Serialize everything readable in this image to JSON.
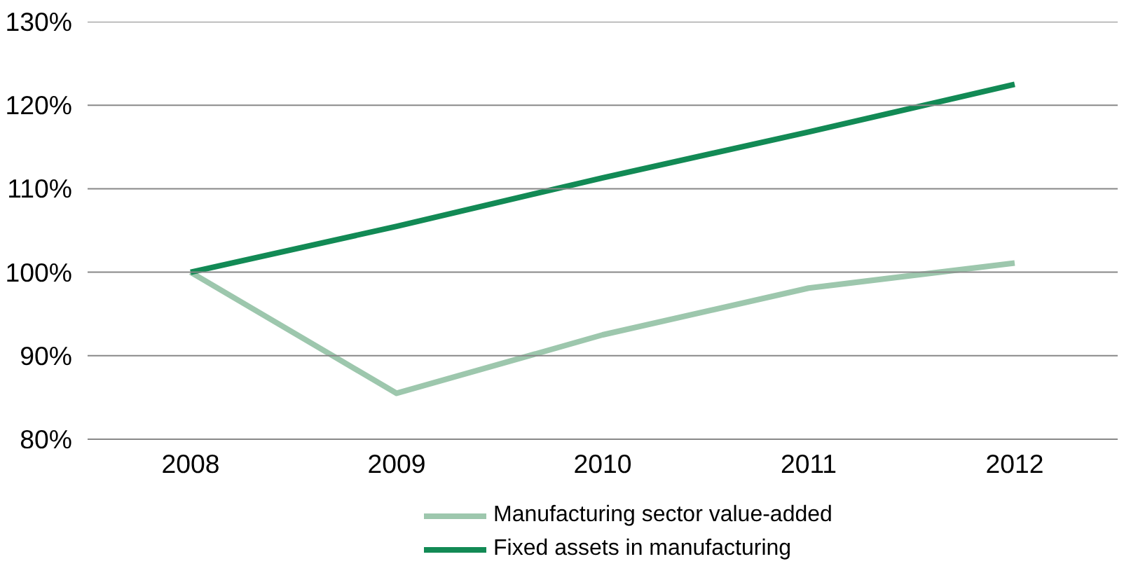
{
  "chart_data": {
    "type": "line",
    "categories": [
      "2008",
      "2009",
      "2010",
      "2011",
      "2012"
    ],
    "series": [
      {
        "name": "Manufacturing sector value-added",
        "color": "#9dc7ad",
        "values": [
          100,
          85.5,
          92.5,
          98.1,
          101.1
        ]
      },
      {
        "name": "Fixed assets in manufacturing",
        "color": "#128a55",
        "values": [
          100,
          105.5,
          111.3,
          116.8,
          122.5
        ]
      }
    ],
    "ylim": [
      80,
      130
    ],
    "yticks": [
      {
        "value": 80,
        "label": "80%"
      },
      {
        "value": 90,
        "label": "90%"
      },
      {
        "value": 100,
        "label": "100%"
      },
      {
        "value": 110,
        "label": "110%"
      },
      {
        "value": 120,
        "label": "120%"
      },
      {
        "value": 130,
        "label": "130%"
      }
    ],
    "grid": "y",
    "legend": "bottom",
    "marker": "none",
    "line_style": "solid"
  }
}
